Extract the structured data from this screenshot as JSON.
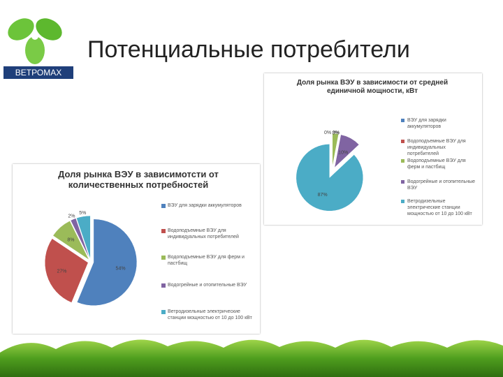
{
  "slide": {
    "title": "Потенциальные потребители",
    "logo": "ВЕТРОМАХ"
  },
  "chart_data": [
    {
      "type": "pie",
      "title": "Доля рынка ВЭУ в зависимотсти от количественных потребностей",
      "categories": [
        "ВЭУ для зарядки аккумуляторов",
        "Водоподъемные ВЭУ для индивидуальных потребителей",
        "Водоподъемные ВЭУ для ферм и пастбищ",
        "Водогрейные и отопительные ВЭУ",
        "Ветродизельные электрические станции мощностью от 10 до 100 кВт"
      ],
      "values": [
        54,
        27,
        8,
        2,
        5
      ],
      "value_labels": [
        "54%",
        "27%",
        "8%",
        "2%",
        "5%"
      ],
      "colors": [
        "#4f81bd",
        "#c0504d",
        "#9bbb59",
        "#8064a2",
        "#4bacc6"
      ]
    },
    {
      "type": "pie",
      "title": "Доля рынка ВЭУ в зависимости от средней единичной мощности, кВт",
      "categories": [
        "ВЭУ для зарядки аккумуляторов",
        "Водоподъемные ВЭУ для индивидуальных потребителей",
        "Водоподъемные ВЭУ для ферм и пастбищ",
        "Водогрейные и отопительные ВЭУ",
        "Ветродизельные электрические станции мощностью от 10 до 100 кВт"
      ],
      "values": [
        0,
        0,
        3,
        10,
        87
      ],
      "value_labels": [
        "0%",
        "0%",
        "3%",
        "10%",
        "87%"
      ],
      "colors": [
        "#4f81bd",
        "#c0504d",
        "#9bbb59",
        "#8064a2",
        "#4bacc6"
      ]
    }
  ]
}
